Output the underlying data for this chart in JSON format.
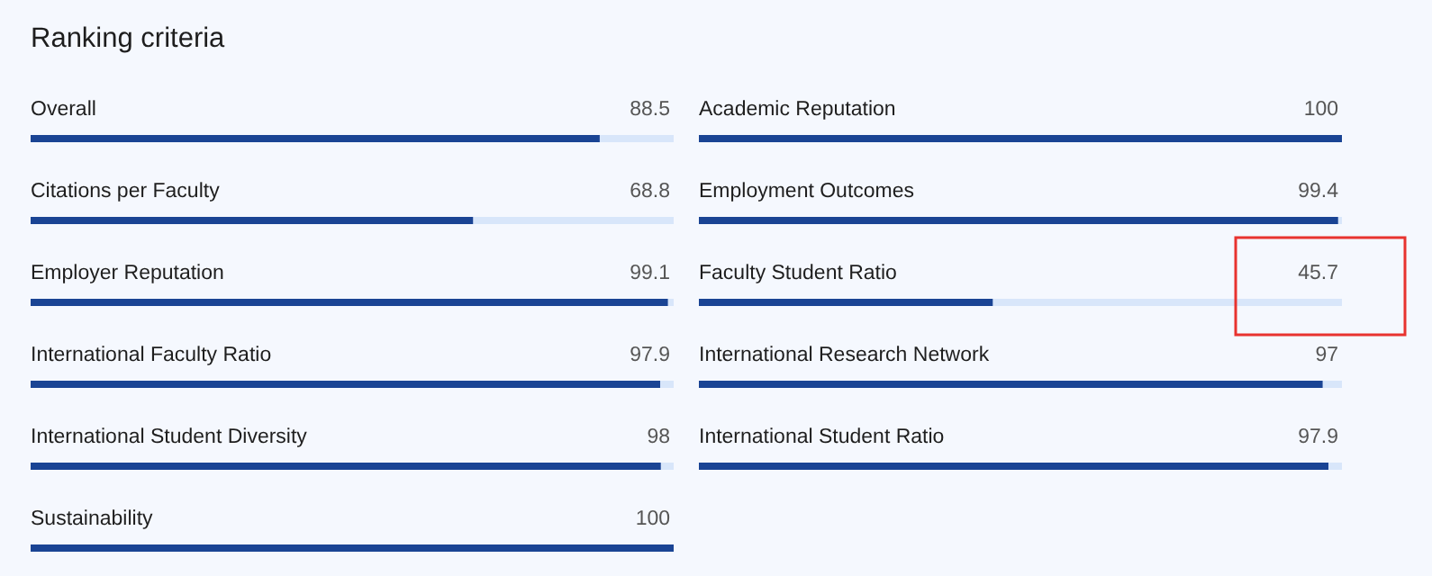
{
  "chart_data": [
    {
      "type": "bar",
      "orientation": "horizontal",
      "title": "Ranking criteria",
      "categories": [
        "Overall",
        "Citations per Faculty",
        "Employer Reputation",
        "International Faculty Ratio",
        "International Student Diversity",
        "Sustainability"
      ],
      "values": [
        88.5,
        68.8,
        99.1,
        97.9,
        98,
        100
      ],
      "color": "#1a4494",
      "xlim": [
        0,
        100
      ],
      "data_labels": true,
      "tick_labels": false
    },
    {
      "type": "bar",
      "orientation": "horizontal",
      "categories": [
        "Academic Reputation",
        "Employment Outcomes",
        "Faculty Student Ratio",
        "International Research Network",
        "International Student Ratio"
      ],
      "values": [
        100,
        99.4,
        45.7,
        97,
        97.9
      ],
      "color": "#1a4494",
      "xlim": [
        0,
        100
      ],
      "data_labels": true,
      "tick_labels": false
    }
  ]
}
